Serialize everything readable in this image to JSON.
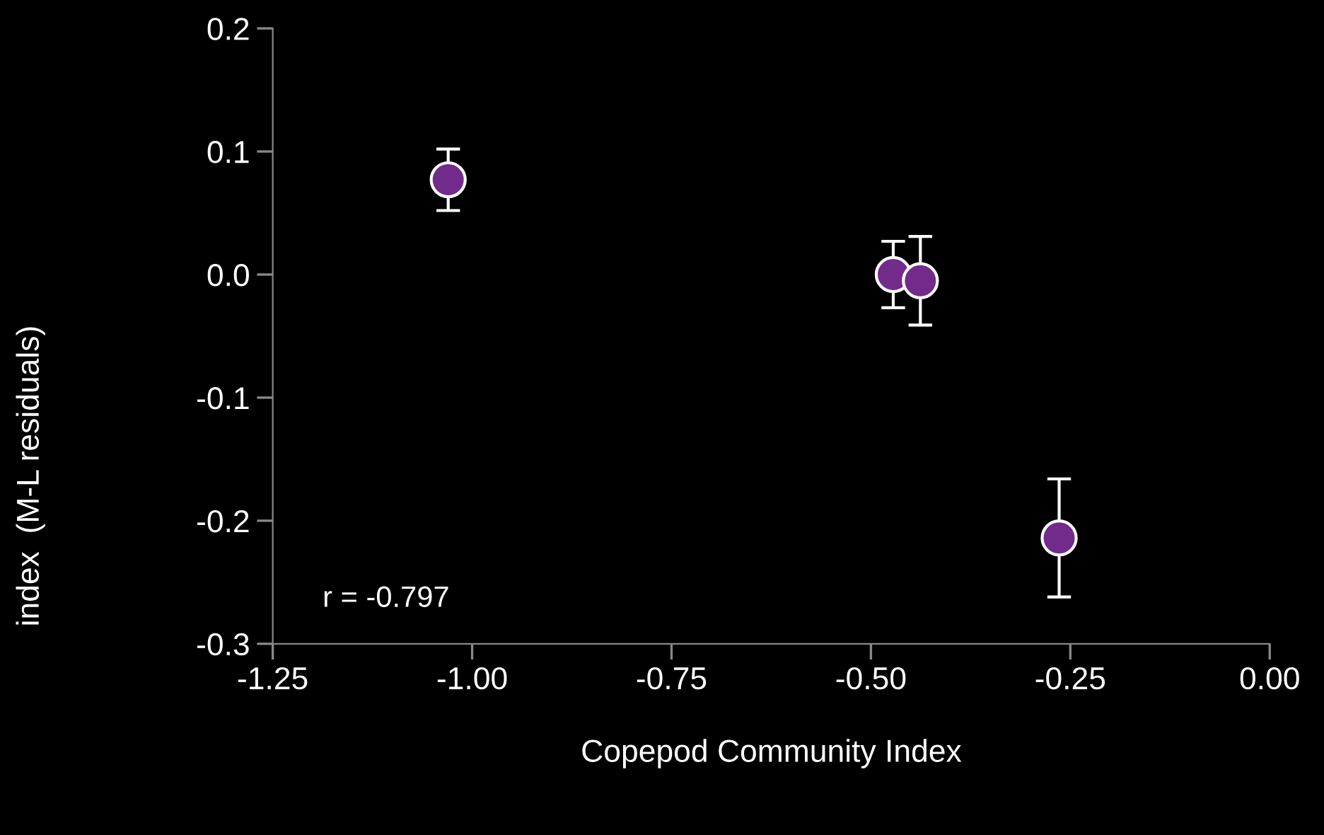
{
  "chart_data": {
    "type": "scatter",
    "xlabel": "Copepod Community Index",
    "ylabel": "index  (M-L residuals)",
    "annotations": [
      "r = -0.797"
    ],
    "x": [
      -1.03,
      -0.472,
      -0.438,
      -0.264
    ],
    "series": [
      {
        "color": "#722b8a",
        "values": [
          0.077,
          0.0,
          -0.005,
          -0.214
        ],
        "errors": [
          0.025,
          0.027,
          0.036,
          0.048
        ]
      }
    ],
    "xlim": [
      -1.25,
      0.0
    ],
    "xticks": [
      {
        "value": -1.25,
        "label": "-1.25"
      },
      {
        "value": -1.0,
        "label": "-1.00"
      },
      {
        "value": -0.75,
        "label": "-0.75"
      },
      {
        "value": -0.5,
        "label": "-0.50"
      },
      {
        "value": -0.25,
        "label": "-0.25"
      },
      {
        "value": 0.0,
        "label": "0.00"
      }
    ],
    "ylim": [
      -0.3,
      0.2
    ],
    "yticks": [
      {
        "value": -0.3,
        "label": "-0.3"
      },
      {
        "value": -0.2,
        "label": "-0.2"
      },
      {
        "value": -0.1,
        "label": "-0.1"
      },
      {
        "value": 0.0,
        "label": "0.0"
      },
      {
        "value": 0.1,
        "label": "0.1"
      },
      {
        "value": 0.2,
        "label": "0.2"
      }
    ],
    "marker": "circle",
    "grid": false,
    "legend": false
  }
}
